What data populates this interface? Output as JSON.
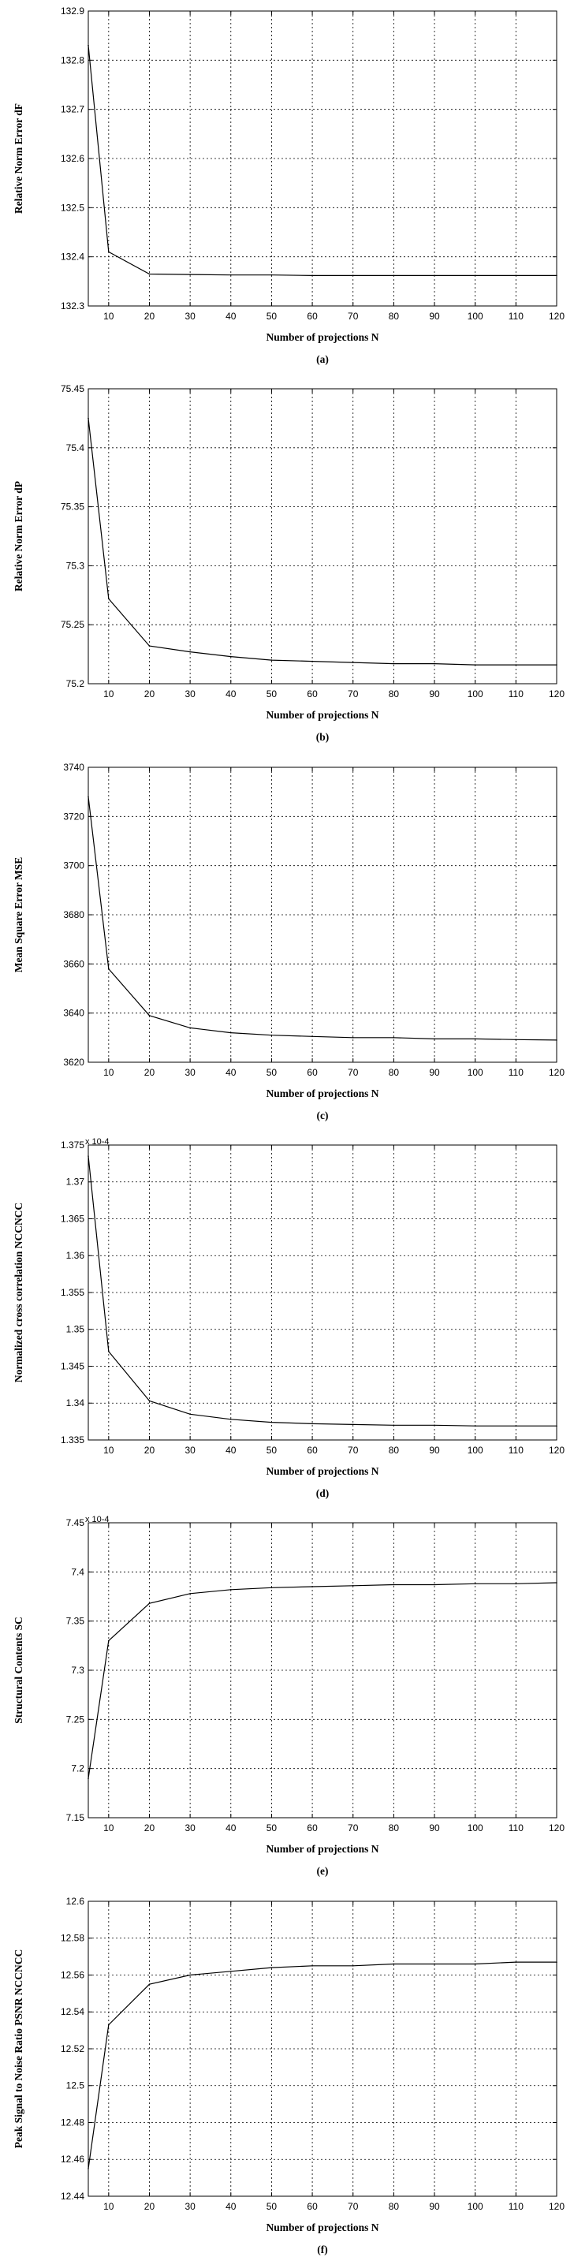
{
  "chart_data": [
    {
      "type": "line",
      "ylabel": "Relative Norm Error dF",
      "xlabel": "Number of projections N",
      "caption": "(a)",
      "xlim": [
        5,
        120
      ],
      "ylim": [
        132.3,
        132.9
      ],
      "xticks": [
        10,
        20,
        30,
        40,
        50,
        60,
        70,
        80,
        90,
        100,
        110,
        120
      ],
      "yticks": [
        132.3,
        132.4,
        132.5,
        132.6,
        132.7,
        132.8,
        132.9
      ],
      "ytick_labels": [
        "132.3",
        "132.4",
        "132.5",
        "132.6",
        "132.7",
        "132.8",
        "132.9"
      ],
      "multiplier": "",
      "grid": true,
      "series": [
        {
          "x": [
            5,
            10,
            20,
            30,
            40,
            50,
            60,
            70,
            80,
            90,
            100,
            110,
            120
          ],
          "y": [
            132.83,
            132.41,
            132.365,
            132.364,
            132.363,
            132.363,
            132.362,
            132.362,
            132.362,
            132.362,
            132.362,
            132.362,
            132.362
          ]
        }
      ]
    },
    {
      "type": "line",
      "ylabel": "Relative Norm Error dP",
      "xlabel": "Number of projections N",
      "caption": "(b)",
      "xlim": [
        5,
        120
      ],
      "ylim": [
        75.2,
        75.45
      ],
      "xticks": [
        10,
        20,
        30,
        40,
        50,
        60,
        70,
        80,
        90,
        100,
        110,
        120
      ],
      "yticks": [
        75.2,
        75.25,
        75.3,
        75.35,
        75.4,
        75.45
      ],
      "ytick_labels": [
        "75.2",
        "75.25",
        "75.3",
        "75.35",
        "75.4",
        "75.45"
      ],
      "multiplier": "",
      "grid": true,
      "series": [
        {
          "x": [
            5,
            10,
            20,
            30,
            40,
            50,
            60,
            70,
            80,
            90,
            100,
            110,
            120
          ],
          "y": [
            75.425,
            75.272,
            75.232,
            75.227,
            75.223,
            75.22,
            75.219,
            75.218,
            75.217,
            75.217,
            75.216,
            75.216,
            75.216
          ]
        }
      ]
    },
    {
      "type": "line",
      "ylabel": "Mean Square Error MSE",
      "xlabel": "Number of projections N",
      "caption": "(c)",
      "xlim": [
        5,
        120
      ],
      "ylim": [
        3620,
        3740
      ],
      "xticks": [
        10,
        20,
        30,
        40,
        50,
        60,
        70,
        80,
        90,
        100,
        110,
        120
      ],
      "yticks": [
        3620,
        3640,
        3660,
        3680,
        3700,
        3720,
        3740
      ],
      "ytick_labels": [
        "3620",
        "3640",
        "3660",
        "3680",
        "3700",
        "3720",
        "3740"
      ],
      "multiplier": "",
      "grid": true,
      "series": [
        {
          "x": [
            5,
            10,
            20,
            30,
            40,
            50,
            60,
            70,
            80,
            90,
            100,
            110,
            120
          ],
          "y": [
            3728,
            3658,
            3639,
            3634,
            3632,
            3631,
            3630.5,
            3630,
            3630,
            3629.5,
            3629.5,
            3629.2,
            3629
          ]
        }
      ]
    },
    {
      "type": "line",
      "ylabel": "Normalized cross correlation NCCNCC",
      "xlabel": "Number of projections N",
      "caption": "(d)",
      "xlim": [
        5,
        120
      ],
      "ylim": [
        1.335,
        1.375
      ],
      "xticks": [
        10,
        20,
        30,
        40,
        50,
        60,
        70,
        80,
        90,
        100,
        110,
        120
      ],
      "yticks": [
        1.335,
        1.34,
        1.345,
        1.35,
        1.355,
        1.36,
        1.365,
        1.37,
        1.375
      ],
      "ytick_labels": [
        "1.335",
        "1.34",
        "1.345",
        "1.35",
        "1.355",
        "1.36",
        "1.365",
        "1.37",
        "1.375"
      ],
      "multiplier": "x 10-4",
      "grid": true,
      "series": [
        {
          "x": [
            5,
            10,
            20,
            30,
            40,
            50,
            60,
            70,
            80,
            90,
            100,
            110,
            120
          ],
          "y": [
            1.3735,
            1.347,
            1.3403,
            1.3385,
            1.3378,
            1.3374,
            1.3372,
            1.3371,
            1.337,
            1.337,
            1.3369,
            1.3369,
            1.3369
          ]
        }
      ]
    },
    {
      "type": "line",
      "ylabel": "Structural Contents SC",
      "xlabel": "Number of projections N",
      "caption": "(e)",
      "xlim": [
        5,
        120
      ],
      "ylim": [
        7.15,
        7.45
      ],
      "xticks": [
        10,
        20,
        30,
        40,
        50,
        60,
        70,
        80,
        90,
        100,
        110,
        120
      ],
      "yticks": [
        7.15,
        7.2,
        7.25,
        7.3,
        7.35,
        7.4,
        7.45
      ],
      "ytick_labels": [
        "7.15",
        "7.2",
        "7.25",
        "7.3",
        "7.35",
        "7.4",
        "7.45"
      ],
      "multiplier": "x 10-4",
      "grid": true,
      "series": [
        {
          "x": [
            5,
            10,
            20,
            30,
            40,
            50,
            60,
            70,
            80,
            90,
            100,
            110,
            120
          ],
          "y": [
            7.19,
            7.33,
            7.368,
            7.378,
            7.382,
            7.384,
            7.385,
            7.386,
            7.387,
            7.387,
            7.388,
            7.388,
            7.389
          ]
        }
      ]
    },
    {
      "type": "line",
      "ylabel": "Peak Signal to Noise Ratio PSNR NCCNCC",
      "xlabel": "Number of projections N",
      "caption": "(f)",
      "xlim": [
        5,
        120
      ],
      "ylim": [
        12.44,
        12.6
      ],
      "xticks": [
        10,
        20,
        30,
        40,
        50,
        60,
        70,
        80,
        90,
        100,
        110,
        120
      ],
      "yticks": [
        12.44,
        12.46,
        12.48,
        12.5,
        12.52,
        12.54,
        12.56,
        12.58,
        12.6
      ],
      "ytick_labels": [
        "12.44",
        "12.46",
        "12.48",
        "12.5",
        "12.52",
        "12.54",
        "12.56",
        "12.58",
        "12.6"
      ],
      "multiplier": "",
      "grid": true,
      "series": [
        {
          "x": [
            5,
            10,
            20,
            30,
            40,
            50,
            60,
            70,
            80,
            90,
            100,
            110,
            120
          ],
          "y": [
            12.455,
            12.533,
            12.555,
            12.56,
            12.562,
            12.564,
            12.565,
            12.565,
            12.566,
            12.566,
            12.566,
            12.567,
            12.567
          ]
        }
      ]
    }
  ]
}
